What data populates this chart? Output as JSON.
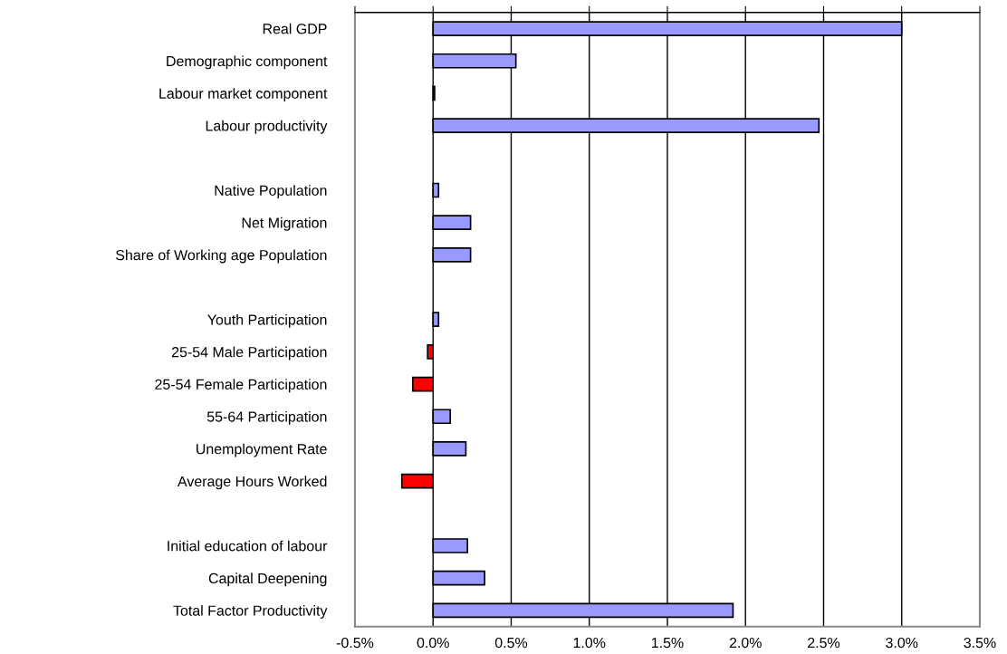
{
  "chart_data": {
    "type": "bar",
    "orientation": "horizontal",
    "categories": [
      "Real GDP",
      "Demographic component",
      "Labour market component",
      "Labour productivity",
      null,
      "Native Population",
      "Net Migration",
      "Share of Working age Population",
      null,
      "Youth Participation",
      "25-54 Male Participation",
      "25-54 Female Participation",
      "55-64 Participation",
      "Unemployment Rate",
      "Average Hours Worked",
      null,
      "Initial education of labour",
      "Capital Deepening",
      "Total Factor Productivity"
    ],
    "values": [
      3.0,
      0.53,
      0.01,
      2.47,
      null,
      0.035,
      0.24,
      0.24,
      null,
      0.035,
      -0.035,
      -0.13,
      0.11,
      0.21,
      -0.2,
      null,
      0.22,
      0.33,
      1.92
    ],
    "colors": [
      "#9999ff",
      "#9999ff",
      "#9999ff",
      "#9999ff",
      null,
      "#9999ff",
      "#9999ff",
      "#9999ff",
      null,
      "#9999ff",
      "#ff0000",
      "#ff0000",
      "#9999ff",
      "#9999ff",
      "#ff0000",
      null,
      "#9999ff",
      "#9999ff",
      "#9999ff"
    ],
    "xlim": [
      -0.5,
      3.5
    ],
    "xticks": [
      {
        "value": -0.5,
        "label": "-0.5%"
      },
      {
        "value": 0,
        "label": "0.0%"
      },
      {
        "value": 0.5,
        "label": "0.5%"
      },
      {
        "value": 1.0,
        "label": "1.0%"
      },
      {
        "value": 1.5,
        "label": "1.5%"
      },
      {
        "value": 2.0,
        "label": "2.0%"
      },
      {
        "value": 2.5,
        "label": "2.5%"
      },
      {
        "value": 3.0,
        "label": "3.0%"
      },
      {
        "value": 3.5,
        "label": "3.5%"
      }
    ],
    "grid": "x"
  }
}
